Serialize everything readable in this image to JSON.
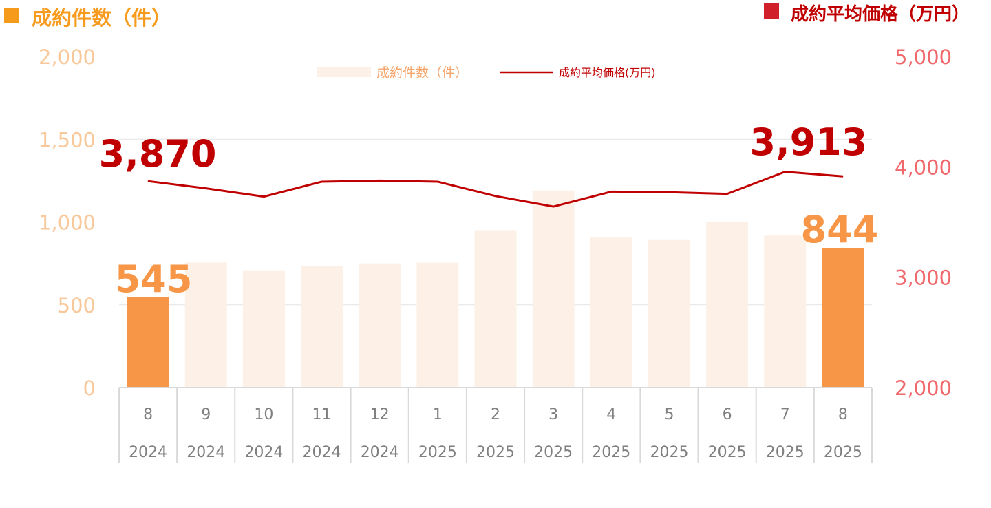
{
  "chart_data": {
    "type": "bar+line",
    "left_axis_title": "成約件数（件）",
    "right_axis_title": "成約平均価格（万円）",
    "categories": [
      "8",
      "9",
      "10",
      "11",
      "12",
      "1",
      "2",
      "3",
      "4",
      "5",
      "6",
      "7",
      "8"
    ],
    "years": [
      "2024",
      "2024",
      "2024",
      "2024",
      "2024",
      "2025",
      "2025",
      "2025",
      "2025",
      "2025",
      "2025",
      "2025",
      "2025"
    ],
    "series": [
      {
        "name": "成約件数（件）",
        "type": "bar",
        "axis": "left",
        "values": [
          545,
          755,
          708,
          732,
          750,
          754,
          950,
          1190,
          906,
          895,
          1000,
          918,
          844
        ],
        "highlight_indices": [
          0,
          12
        ]
      },
      {
        "name": "成約平均価格(万円)",
        "type": "line",
        "axis": "right",
        "values": [
          3870,
          3805,
          3730,
          3865,
          3875,
          3865,
          3735,
          3640,
          3775,
          3770,
          3755,
          3955,
          3913
        ]
      }
    ],
    "left_axis": {
      "ylim": [
        0,
        2000
      ],
      "ticks": [
        "0",
        "500",
        "1,000",
        "1,500",
        "2,000"
      ]
    },
    "right_axis": {
      "ylim": [
        2000,
        5000
      ],
      "ticks": [
        "2,000",
        "3,000",
        "4,000",
        "5,000"
      ]
    },
    "data_labels": [
      {
        "series": 0,
        "index": 0,
        "text": "545"
      },
      {
        "series": 0,
        "index": 12,
        "text": "844"
      },
      {
        "series": 1,
        "index": 0,
        "text": "3,870"
      },
      {
        "series": 1,
        "index": 12,
        "text": "3,913"
      }
    ],
    "legend_placement": "top-center",
    "grid": true
  },
  "colors": {
    "bar_highlight": "#f79646",
    "bar_faded": "#fdf1e7",
    "line": "#c00000",
    "left_axis_text": "#f9c89a",
    "right_axis_text": "#f0686b",
    "left_title": "#f79b1e",
    "right_title": "#c00000",
    "left_square": "#f59a1a",
    "right_square": "#d0202a",
    "category_text": "#7f7f7f",
    "gridline": "#e3e3e3",
    "axis_line": "#d9d9d9",
    "legend_bar_text": "#f5a56a",
    "legend_line_text": "#c00000"
  }
}
